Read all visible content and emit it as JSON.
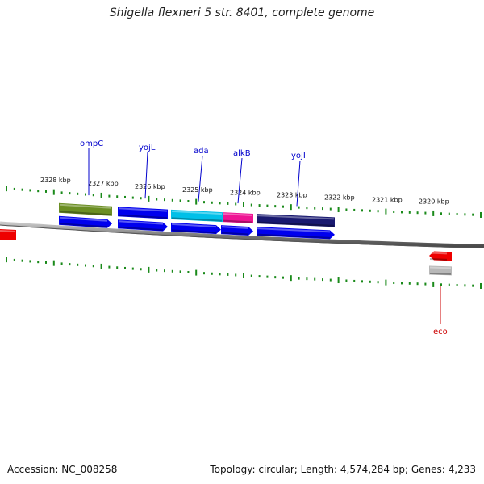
{
  "title": "Shigella flexneri 5 str. 8401, complete genome",
  "footer": {
    "accession": "Accession: NC_008258",
    "topology": "Topology: circular; Length: 4,574,284 bp; Genes: 4,233"
  },
  "colors": {
    "tick": "#1a8a1a",
    "backbone": "#8a8a8a",
    "gene_label": "#0000cc",
    "eco_label": "#cc0000"
  },
  "ticks": [
    "2328 kbp",
    "2327 kbp",
    "2326 kbp",
    "2325 kbp",
    "2324 kbp",
    "2323 kbp",
    "2322 kbp",
    "2321 kbp",
    "2320 kbp"
  ],
  "genes": [
    {
      "name": "ompC",
      "color": "#6b8e23",
      "track": "feature"
    },
    {
      "name": "yojL",
      "color": "#0000ee",
      "track": "feature"
    },
    {
      "name": "ada",
      "color": "#00c0e8",
      "track": "feature"
    },
    {
      "name": "alkB",
      "color": "#ee1493",
      "track": "feature"
    },
    {
      "name": "yojI",
      "color": "#191970",
      "track": "feature"
    },
    {
      "name": "eco",
      "color": "#ee0000",
      "track": "other-strand"
    }
  ]
}
